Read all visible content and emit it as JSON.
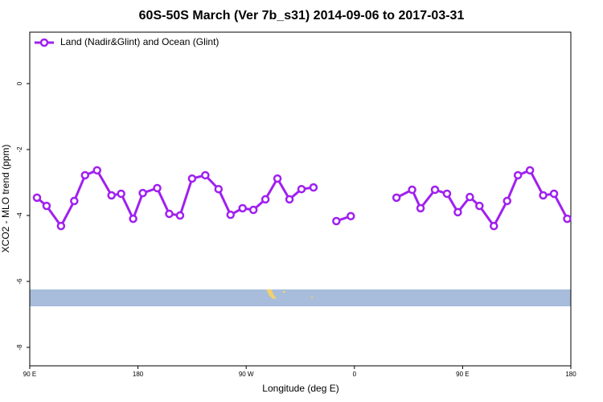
{
  "chart_data": {
    "type": "line",
    "title": "60S-50S March (Ver 7b_s31)   2014-09-06 to 2017-03-31",
    "x_label": "Longitude (deg E)",
    "y_label": "XCO2 - MLO trend (ppm)",
    "xlim": [
      90,
      540
    ],
    "ylim": [
      -8.56,
      1.56
    ],
    "xticks": [
      {
        "value": 90,
        "label": "90 E"
      },
      {
        "value": 180,
        "label": "180"
      },
      {
        "value": 270,
        "label": "90 W"
      },
      {
        "value": 360,
        "label": "0"
      },
      {
        "value": 450,
        "label": "90 E"
      },
      {
        "value": 540,
        "label": "180"
      }
    ],
    "yticks": [
      0,
      -2,
      -4,
      -6,
      -8
    ],
    "legend": "top-left",
    "series": [
      {
        "name": "Land (Nadir&Glint) and Ocean (Glint)",
        "color": "#a020f0",
        "x": [
          96,
          104,
          116,
          127,
          136,
          146,
          158,
          166,
          176,
          184,
          196,
          206,
          215,
          225,
          236,
          247,
          257,
          267,
          276,
          286,
          296,
          306,
          316,
          326,
          336,
          345,
          357,
          376,
          395,
          408,
          415,
          427,
          437,
          446,
          456,
          464,
          476,
          487,
          496,
          506,
          517,
          526,
          537
        ],
        "values": [
          -3.46,
          -3.71,
          -4.32,
          -3.56,
          -2.78,
          -2.63,
          -3.39,
          -3.34,
          -4.1,
          -3.32,
          -3.17,
          -3.95,
          -4.0,
          -2.88,
          -2.78,
          -3.2,
          -3.98,
          -3.78,
          -3.83,
          -3.51,
          -2.88,
          -3.51,
          -3.2,
          -3.15,
          null,
          -4.17,
          -4.02,
          null,
          -3.46,
          -3.22,
          -3.78,
          -3.22,
          -3.34,
          -3.9,
          -3.44,
          -3.71,
          -4.32,
          -3.56,
          -2.78,
          -2.63,
          -3.39,
          -3.34,
          -4.1
        ]
      }
    ]
  }
}
